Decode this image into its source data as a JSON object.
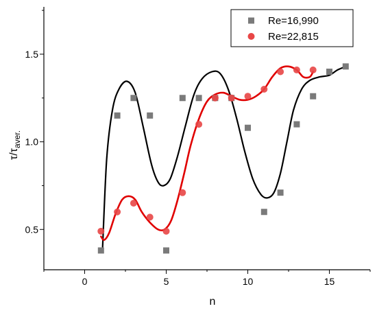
{
  "chart_data": {
    "type": "scatter",
    "xlabel": "n",
    "ylabel": {
      "base": "τ/τ",
      "sub": "aver."
    },
    "xlim": [
      -2.5,
      17.5
    ],
    "ylim": [
      0.27,
      1.77
    ],
    "xticks": [
      0,
      5,
      10,
      15
    ],
    "yticks": [
      0.5,
      1.0,
      1.5
    ],
    "ytick_labels": [
      "0.5",
      "1.0",
      "1.5"
    ],
    "legend_position": "top-right",
    "series": [
      {
        "name": "Re=16,990",
        "marker": "square",
        "color": "#7a7a7a",
        "curve_color": "#000000",
        "x": [
          1,
          2,
          3,
          4,
          5,
          6,
          7,
          8,
          9,
          10,
          11,
          12,
          13,
          14,
          15,
          16
        ],
        "y": [
          0.38,
          1.15,
          1.25,
          1.15,
          0.38,
          1.25,
          1.25,
          1.25,
          1.25,
          1.08,
          0.6,
          0.71,
          1.1,
          1.26,
          1.4,
          1.43
        ],
        "fit": [
          [
            1.1,
            0.4
          ],
          [
            1.35,
            0.9
          ],
          [
            1.7,
            1.18
          ],
          [
            2.1,
            1.3
          ],
          [
            2.6,
            1.345
          ],
          [
            3.1,
            1.28
          ],
          [
            3.6,
            1.08
          ],
          [
            4.1,
            0.87
          ],
          [
            4.5,
            0.77
          ],
          [
            4.85,
            0.75
          ],
          [
            5.25,
            0.79
          ],
          [
            5.7,
            0.92
          ],
          [
            6.2,
            1.1
          ],
          [
            6.7,
            1.27
          ],
          [
            7.2,
            1.36
          ],
          [
            7.8,
            1.4
          ],
          [
            8.3,
            1.39
          ],
          [
            8.8,
            1.3
          ],
          [
            9.3,
            1.14
          ],
          [
            9.8,
            0.95
          ],
          [
            10.3,
            0.79
          ],
          [
            10.8,
            0.7
          ],
          [
            11.2,
            0.68
          ],
          [
            11.6,
            0.71
          ],
          [
            12.0,
            0.82
          ],
          [
            12.4,
            1.0
          ],
          [
            12.8,
            1.18
          ],
          [
            13.3,
            1.3
          ],
          [
            13.8,
            1.35
          ],
          [
            14.4,
            1.37
          ],
          [
            15.0,
            1.38
          ],
          [
            15.5,
            1.41
          ],
          [
            16.0,
            1.43
          ]
        ]
      },
      {
        "name": "Re=22,815",
        "marker": "circle",
        "color": "#e84646",
        "curve_color": "#e00000",
        "x": [
          1,
          2,
          3,
          4,
          5,
          6,
          7,
          8,
          9,
          10,
          11,
          12,
          13,
          14
        ],
        "y": [
          0.49,
          0.6,
          0.65,
          0.57,
          0.49,
          0.71,
          1.1,
          1.25,
          1.25,
          1.26,
          1.3,
          1.4,
          1.41,
          1.41
        ],
        "fit": [
          [
            1.0,
            0.46
          ],
          [
            1.2,
            0.44
          ],
          [
            1.5,
            0.48
          ],
          [
            1.9,
            0.59
          ],
          [
            2.3,
            0.67
          ],
          [
            2.7,
            0.69
          ],
          [
            3.1,
            0.67
          ],
          [
            3.5,
            0.6
          ],
          [
            4.0,
            0.54
          ],
          [
            4.5,
            0.5
          ],
          [
            4.9,
            0.5
          ],
          [
            5.3,
            0.55
          ],
          [
            5.7,
            0.67
          ],
          [
            6.1,
            0.82
          ],
          [
            6.5,
            0.98
          ],
          [
            7.0,
            1.13
          ],
          [
            7.5,
            1.23
          ],
          [
            8.0,
            1.27
          ],
          [
            8.5,
            1.28
          ],
          [
            9.0,
            1.26
          ],
          [
            9.5,
            1.24
          ],
          [
            10.0,
            1.24
          ],
          [
            10.5,
            1.26
          ],
          [
            11.0,
            1.3
          ],
          [
            11.5,
            1.37
          ],
          [
            12.0,
            1.42
          ],
          [
            12.5,
            1.43
          ],
          [
            13.0,
            1.41
          ],
          [
            13.4,
            1.37
          ],
          [
            13.8,
            1.37
          ],
          [
            14.0,
            1.4
          ]
        ]
      }
    ]
  }
}
